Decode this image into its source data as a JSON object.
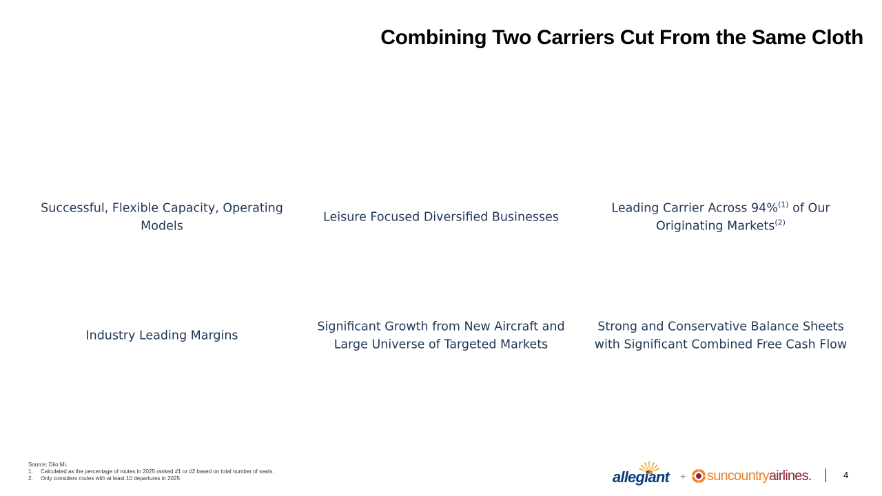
{
  "slide": {
    "title": "Combining Two Carriers Cut From the Same Cloth",
    "page_number": "4"
  },
  "grid": {
    "row1": {
      "col1": "Successful, Flexible Capacity, Operating Models",
      "col2": "Leisure Focused Diversified Businesses",
      "col3": {
        "part1": "Leading Carrier Across 94%",
        "sup1": "(1)",
        "part2": " of Our Originating Markets",
        "sup2": "(2)"
      }
    },
    "row2": {
      "col1": "Industry Leading Margins",
      "col2": "Significant Growth from New Aircraft and Large Universe of Targeted Markets",
      "col3": "Strong and Conservative Balance Sheets with Significant Combined Free Cash Flow"
    }
  },
  "footnotes": {
    "source": "Source: Diio Mi.",
    "notes": [
      {
        "num": "1.",
        "text": "Calculated as the percentage of routes in 2025 ranked #1 or #2 based on total number of seats."
      },
      {
        "num": "2.",
        "text": "Only considers routes with at least 10 departures in 2025."
      }
    ]
  },
  "logos": {
    "allegiant": "allegiant",
    "plus": "+",
    "suncountry_main": "suncountry",
    "suncountry_airlines": "airlines",
    "registered": ".",
    "colors": {
      "allegiant_blue": "#0b3c7a",
      "allegiant_sun": "#f5a623",
      "suncountry_orange": "#f07f22",
      "suncountry_maroon": "#8a2432"
    }
  }
}
